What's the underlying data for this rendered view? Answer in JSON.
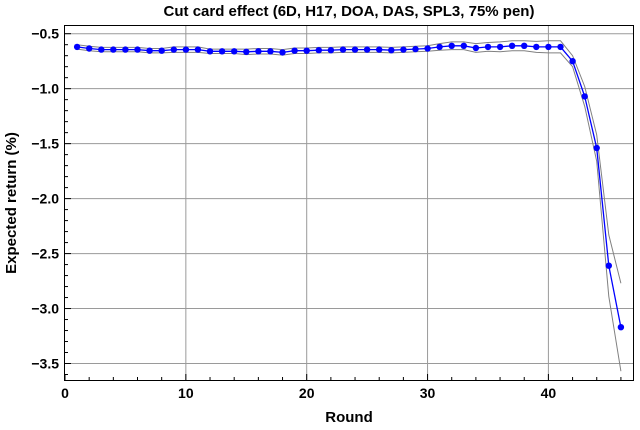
{
  "chart_data": {
    "type": "line",
    "title": "Cut card effect (6D, H17, DOA, DAS, SPL3, 75% pen)",
    "xlabel": "Round",
    "ylabel": "Expected return (%)",
    "xlim": [
      0,
      47
    ],
    "ylim": [
      -3.65,
      -0.43
    ],
    "grid": true,
    "x_ticks": [
      0,
      10,
      20,
      30,
      40
    ],
    "y_ticks": [
      -0.5,
      -1.0,
      -1.5,
      -2.0,
      -2.5,
      -3.0,
      -3.5
    ],
    "x_tick_labels": [
      "0",
      "10",
      "20",
      "30",
      "40"
    ],
    "y_tick_labels": [
      "−0.5",
      "−1.0",
      "−1.5",
      "−2.0",
      "−2.5",
      "−3.0",
      "−3.5"
    ],
    "colors": {
      "main": "#0000ff",
      "band": "#808080",
      "grid": "#9a9a9a"
    },
    "x": [
      1,
      2,
      3,
      4,
      5,
      6,
      7,
      8,
      9,
      10,
      11,
      12,
      13,
      14,
      15,
      16,
      17,
      18,
      19,
      20,
      21,
      22,
      23,
      24,
      25,
      26,
      27,
      28,
      29,
      30,
      31,
      32,
      33,
      34,
      35,
      36,
      37,
      38,
      39,
      40,
      41,
      42,
      43,
      44,
      45,
      46
    ],
    "series": [
      {
        "role": "estimate",
        "values": [
          -0.62,
          -0.635,
          -0.645,
          -0.645,
          -0.645,
          -0.645,
          -0.655,
          -0.655,
          -0.645,
          -0.645,
          -0.645,
          -0.66,
          -0.66,
          -0.66,
          -0.665,
          -0.66,
          -0.66,
          -0.67,
          -0.655,
          -0.655,
          -0.65,
          -0.65,
          -0.645,
          -0.645,
          -0.645,
          -0.645,
          -0.65,
          -0.645,
          -0.64,
          -0.635,
          -0.62,
          -0.61,
          -0.61,
          -0.63,
          -0.62,
          -0.62,
          -0.61,
          -0.61,
          -0.62,
          -0.62,
          -0.62,
          -0.75,
          -1.07,
          -1.54,
          -2.61,
          -3.17
        ],
        "markers": true
      },
      {
        "role": "upper-band",
        "values": [
          -0.6,
          -0.615,
          -0.625,
          -0.625,
          -0.625,
          -0.625,
          -0.635,
          -0.635,
          -0.62,
          -0.62,
          -0.62,
          -0.64,
          -0.64,
          -0.64,
          -0.64,
          -0.635,
          -0.635,
          -0.645,
          -0.63,
          -0.63,
          -0.625,
          -0.625,
          -0.62,
          -0.62,
          -0.62,
          -0.62,
          -0.625,
          -0.62,
          -0.615,
          -0.61,
          -0.59,
          -0.575,
          -0.575,
          -0.59,
          -0.58,
          -0.575,
          -0.565,
          -0.565,
          -0.57,
          -0.565,
          -0.565,
          -0.7,
          -0.98,
          -1.42,
          -2.33,
          -2.77
        ],
        "markers": false
      },
      {
        "role": "lower-band",
        "values": [
          -0.64,
          -0.655,
          -0.665,
          -0.665,
          -0.665,
          -0.665,
          -0.675,
          -0.675,
          -0.67,
          -0.67,
          -0.67,
          -0.68,
          -0.68,
          -0.68,
          -0.69,
          -0.685,
          -0.685,
          -0.695,
          -0.68,
          -0.68,
          -0.675,
          -0.675,
          -0.67,
          -0.67,
          -0.67,
          -0.67,
          -0.675,
          -0.67,
          -0.665,
          -0.66,
          -0.65,
          -0.645,
          -0.645,
          -0.67,
          -0.66,
          -0.665,
          -0.655,
          -0.655,
          -0.67,
          -0.675,
          -0.675,
          -0.8,
          -1.16,
          -1.66,
          -2.89,
          -3.57
        ],
        "markers": false
      }
    ]
  }
}
